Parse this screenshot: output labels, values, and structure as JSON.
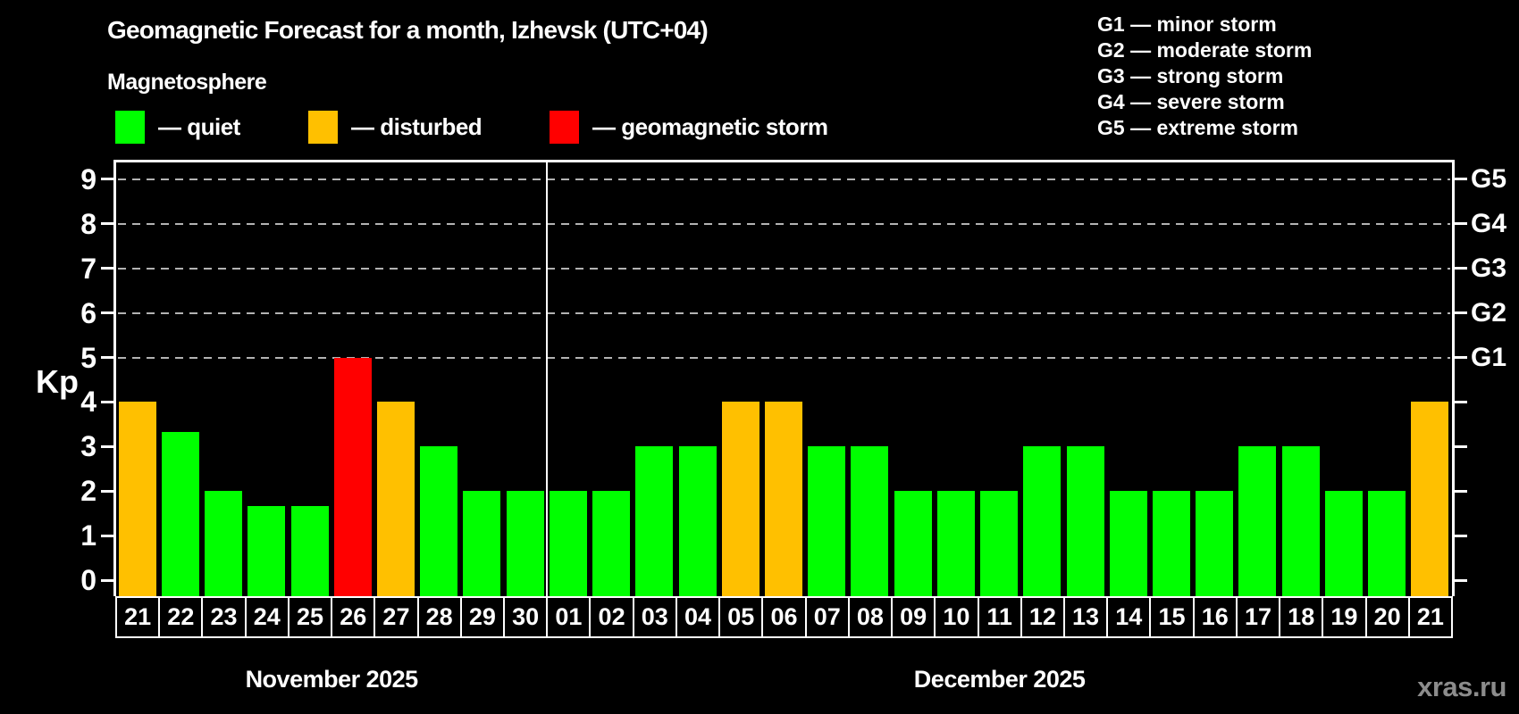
{
  "title": "Geomagnetic Forecast for a month, Izhevsk (UTC+04)",
  "subtitle": "Magnetosphere",
  "watermark": "xras.ru",
  "status_legend": [
    {
      "key": "quiet",
      "label": "— quiet",
      "color": "#00ff00"
    },
    {
      "key": "disturbed",
      "label": "— disturbed",
      "color": "#ffc000"
    },
    {
      "key": "storm",
      "label": "— geomagnetic storm",
      "color": "#ff0000"
    }
  ],
  "g_legend": [
    "G1 — minor storm",
    "G2 — moderate storm",
    "G3 — strong storm",
    "G4 — severe storm",
    "G5 — extreme storm"
  ],
  "chart_data": {
    "type": "bar",
    "ylabel": "Kp",
    "ylim": [
      0,
      9.4
    ],
    "yticks": [
      0,
      1,
      2,
      3,
      4,
      5,
      6,
      7,
      8,
      9
    ],
    "gridlines_at": [
      5,
      6,
      7,
      8,
      9
    ],
    "grid": "dashed",
    "right_axis_labels": [
      {
        "kp": 5,
        "label": "G1"
      },
      {
        "kp": 6,
        "label": "G2"
      },
      {
        "kp": 7,
        "label": "G3"
      },
      {
        "kp": 8,
        "label": "G4"
      },
      {
        "kp": 9,
        "label": "G5"
      }
    ],
    "months": [
      {
        "label": "November 2025",
        "days": 10
      },
      {
        "label": "December 2025",
        "days": 21
      }
    ],
    "categories": [
      "21",
      "22",
      "23",
      "24",
      "25",
      "26",
      "27",
      "28",
      "29",
      "30",
      "01",
      "02",
      "03",
      "04",
      "05",
      "06",
      "07",
      "08",
      "09",
      "10",
      "11",
      "12",
      "13",
      "14",
      "15",
      "16",
      "17",
      "18",
      "19",
      "20",
      "21"
    ],
    "values": [
      4,
      3.33,
      2,
      1.67,
      1.67,
      5,
      4,
      3,
      2,
      2,
      2,
      2,
      3,
      3,
      4,
      4,
      3,
      3,
      2,
      2,
      2,
      3,
      3,
      2,
      2,
      2,
      3,
      3,
      2,
      2,
      4
    ],
    "statuses": [
      "disturbed",
      "quiet",
      "quiet",
      "quiet",
      "quiet",
      "storm",
      "disturbed",
      "quiet",
      "quiet",
      "quiet",
      "quiet",
      "quiet",
      "quiet",
      "quiet",
      "disturbed",
      "disturbed",
      "quiet",
      "quiet",
      "quiet",
      "quiet",
      "quiet",
      "quiet",
      "quiet",
      "quiet",
      "quiet",
      "quiet",
      "quiet",
      "quiet",
      "quiet",
      "quiet",
      "disturbed"
    ],
    "colors": {
      "quiet": "#00ff00",
      "disturbed": "#ffc000",
      "storm": "#ff0000"
    }
  }
}
